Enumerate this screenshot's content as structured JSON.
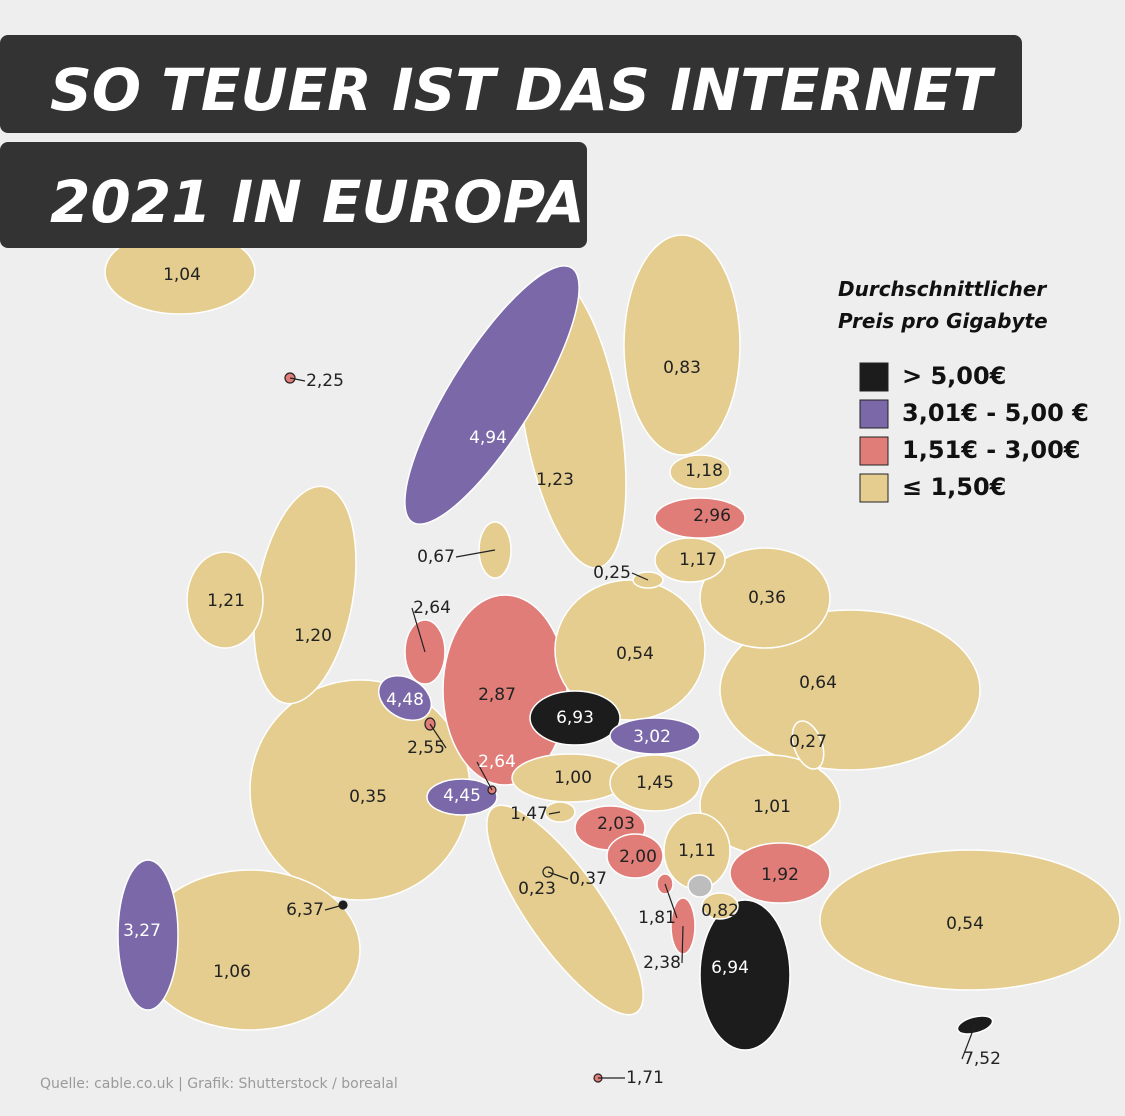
{
  "title": {
    "line1": "SO TEUER IST DAS INTERNET",
    "line2": "2021 IN EUROPA"
  },
  "legend": {
    "title_lines": [
      "Durchschnittlicher",
      "Preis pro Gigabyte"
    ],
    "items": [
      {
        "label": "> 5,00€",
        "color": "#1c1c1c"
      },
      {
        "label": "3,01€ - 5,00 €",
        "color": "#7a68a8"
      },
      {
        "label": "1,51€ - 3,00€",
        "color": "#e07d78"
      },
      {
        "label": "≤ 1,50€",
        "color": "#e4cd8f"
      }
    ]
  },
  "countries": [
    {
      "label": "1,04",
      "color": "#e4cd8f"
    },
    {
      "label": "2,25",
      "color": "#e07d78"
    },
    {
      "label": "4,94",
      "color": "#7a68a8"
    },
    {
      "label": "1,23",
      "color": "#e4cd8f"
    },
    {
      "label": "0,83",
      "color": "#e4cd8f"
    },
    {
      "label": "1,18",
      "color": "#e4cd8f"
    },
    {
      "label": "2,96",
      "color": "#e07d78"
    },
    {
      "label": "1,17",
      "color": "#e4cd8f"
    },
    {
      "label": "0,36",
      "color": "#e4cd8f"
    },
    {
      "label": "0,67",
      "color": "#e4cd8f"
    },
    {
      "label": "0,25",
      "color": "#e4cd8f"
    },
    {
      "label": "1,21",
      "color": "#e4cd8f"
    },
    {
      "label": "1,20",
      "color": "#e4cd8f"
    },
    {
      "label": "2,64",
      "color": "#e07d78"
    },
    {
      "label": "2,87",
      "color": "#e07d78"
    },
    {
      "label": "0,54",
      "color": "#e4cd8f"
    },
    {
      "label": "0,64",
      "color": "#e4cd8f"
    },
    {
      "label": "4,48",
      "color": "#7a68a8"
    },
    {
      "label": "2,55",
      "color": "#e07d78"
    },
    {
      "label": "6,93",
      "color": "#1c1c1c"
    },
    {
      "label": "0,27",
      "color": "#e4cd8f"
    },
    {
      "label": "3,02",
      "color": "#7a68a8"
    },
    {
      "label": "2,64",
      "color": "#e07d78"
    },
    {
      "label": "1,00",
      "color": "#e4cd8f"
    },
    {
      "label": "1,45",
      "color": "#e4cd8f"
    },
    {
      "label": "1,01",
      "color": "#e4cd8f"
    },
    {
      "label": "0,35",
      "color": "#e4cd8f"
    },
    {
      "label": "4,45",
      "color": "#7a68a8"
    },
    {
      "label": "1,47",
      "color": "#e4cd8f"
    },
    {
      "label": "2,03",
      "color": "#e07d78"
    },
    {
      "label": "2,00",
      "color": "#e07d78"
    },
    {
      "label": "1,11",
      "color": "#e4cd8f"
    },
    {
      "label": "1,92",
      "color": "#e07d78"
    },
    {
      "label": "0,37",
      "color": "#e4cd8f"
    },
    {
      "label": "0,23",
      "color": "#e4cd8f"
    },
    {
      "label": "6,37",
      "color": "#1c1c1c"
    },
    {
      "label": "3,27",
      "color": "#7a68a8"
    },
    {
      "label": "1,06",
      "color": "#e4cd8f"
    },
    {
      "label": "1,81",
      "color": "#e07d78"
    },
    {
      "label": "0,82",
      "color": "#e4cd8f"
    },
    {
      "label": "2,38",
      "color": "#e07d78"
    },
    {
      "label": "6,94",
      "color": "#1c1c1c"
    },
    {
      "label": "0,54",
      "color": "#e4cd8f"
    },
    {
      "label": "7,52",
      "color": "#1c1c1c"
    },
    {
      "label": "1,71",
      "color": "#e07d78"
    }
  ],
  "source": "Quelle: cable.co.uk | Grafik: Shutterstock / borealal"
}
